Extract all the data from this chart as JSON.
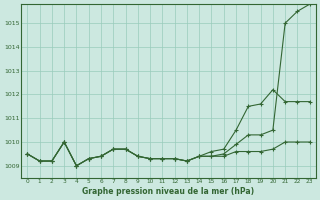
{
  "title": "Graphe pression niveau de la mer (hPa)",
  "bg_color": "#cce8e0",
  "grid_color": "#99ccbb",
  "line_color": "#336633",
  "x_labels": [
    "0",
    "1",
    "2",
    "3",
    "4",
    "5",
    "6",
    "7",
    "8",
    "9",
    "10",
    "11",
    "12",
    "13",
    "14",
    "15",
    "16",
    "17",
    "18",
    "19",
    "20",
    "21",
    "22",
    "23"
  ],
  "ylim": [
    1008.5,
    1015.8
  ],
  "yticks": [
    1009,
    1010,
    1011,
    1012,
    1013,
    1014,
    1015
  ],
  "line1": [
    1009.5,
    1009.2,
    1009.2,
    1010.0,
    1009.0,
    1009.3,
    1009.4,
    1009.7,
    1009.7,
    1009.4,
    1009.3,
    1009.3,
    1009.3,
    1009.2,
    1009.4,
    1009.4,
    1009.4,
    1009.6,
    1009.6,
    1009.6,
    1009.7,
    1010.0,
    1010.0,
    1010.0
  ],
  "line2": [
    1009.5,
    1009.2,
    1009.2,
    1010.0,
    1009.0,
    1009.3,
    1009.4,
    1009.7,
    1009.7,
    1009.4,
    1009.3,
    1009.3,
    1009.3,
    1009.2,
    1009.4,
    1009.6,
    1009.7,
    1010.5,
    1011.5,
    1011.6,
    1012.2,
    1011.7,
    1011.7,
    1011.7
  ],
  "line3": [
    1009.5,
    1009.2,
    1009.2,
    1010.0,
    1009.0,
    1009.3,
    1009.4,
    1009.7,
    1009.7,
    1009.4,
    1009.3,
    1009.3,
    1009.3,
    1009.2,
    1009.4,
    1009.4,
    1009.5,
    1009.9,
    1010.3,
    1010.3,
    1010.5,
    1015.0,
    1015.5,
    1015.8
  ]
}
